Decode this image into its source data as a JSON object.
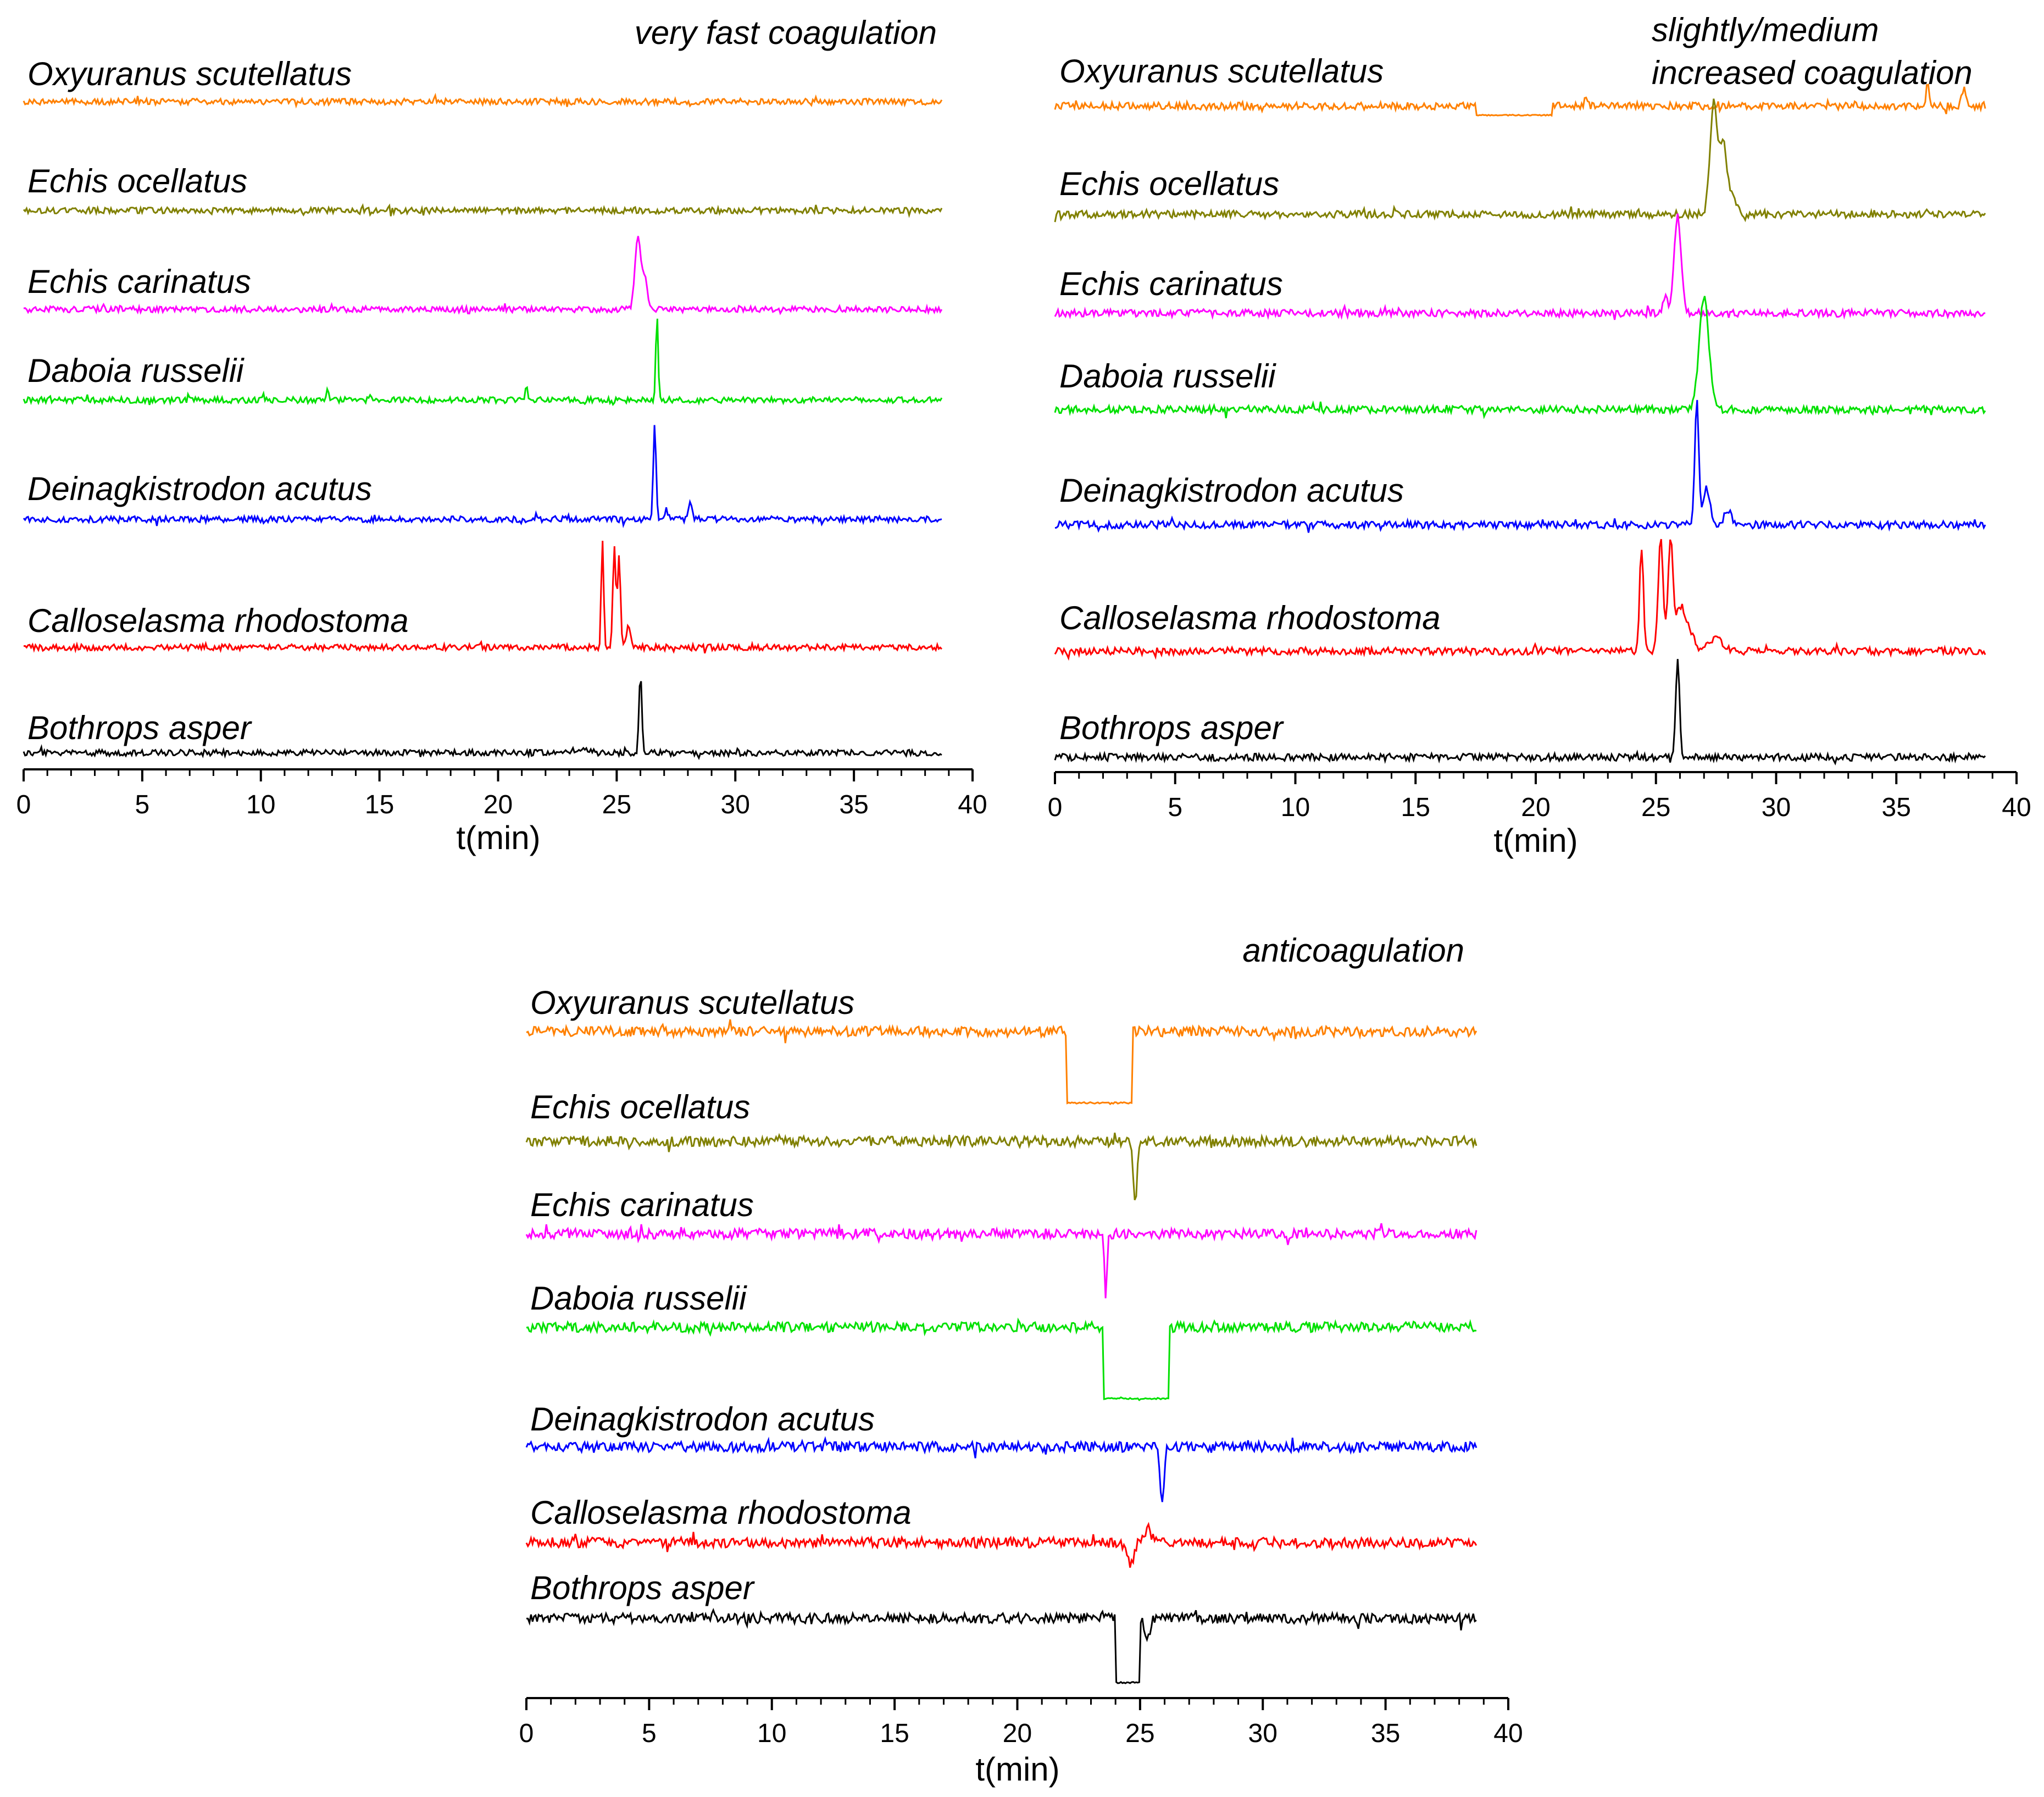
{
  "colors": {
    "oxyuranus": "#ff8000",
    "echis_ocellatus": "#808000",
    "echis_carinatus": "#ff00ff",
    "daboia": "#00e000",
    "deinagkistrodon": "#0000ff",
    "calloselasma": "#ff0000",
    "bothrops": "#000000"
  },
  "chart_data": [
    {
      "type": "line",
      "panel_id": "A",
      "title_lines": [
        "very fast coagulation"
      ],
      "xlabel": "t(min)",
      "xlim": [
        0,
        40
      ],
      "x_major_ticks": [
        0,
        5,
        10,
        15,
        20,
        25,
        30,
        35,
        40
      ],
      "x_tick_labels": [
        "0",
        "5",
        "10",
        "15",
        "20",
        "25",
        "30",
        "35",
        "40"
      ],
      "x_minor_step": 1,
      "data_end": 38.7,
      "noise_level": 0.05,
      "series": [
        {
          "name": "Oxyuranus scutellatus",
          "color_key": "oxyuranus",
          "peaks": [],
          "plateaus": []
        },
        {
          "name": "Echis ocellatus",
          "color_key": "echis_ocellatus",
          "peaks": [],
          "plateaus": []
        },
        {
          "name": "Echis carinatus",
          "color_key": "echis_carinatus",
          "peaks": [
            {
              "t": 25.9,
              "h": 1.25,
              "w": 0.12
            },
            {
              "t": 26.2,
              "h": 0.5,
              "w": 0.1
            }
          ],
          "plateaus": []
        },
        {
          "name": "Daboia russelii",
          "color_key": "daboia",
          "peaks": [
            {
              "t": 26.7,
              "h": 1.35,
              "w": 0.05
            },
            {
              "t": 21.2,
              "h": 0.25,
              "w": 0.05
            },
            {
              "t": 12.8,
              "h": 0.2,
              "w": 0.05
            }
          ],
          "plateaus": []
        },
        {
          "name": "Deinagkistrodon acutus",
          "color_key": "deinagkistrodon",
          "peaks": [
            {
              "t": 26.6,
              "h": 1.6,
              "w": 0.06
            },
            {
              "t": 28.1,
              "h": 0.25,
              "w": 0.08
            },
            {
              "t": 27.1,
              "h": 0.15,
              "w": 0.06
            }
          ],
          "plateaus": []
        },
        {
          "name": "Calloselasma rhodostoma",
          "color_key": "calloselasma",
          "peaks": [
            {
              "t": 24.4,
              "h": 1.8,
              "w": 0.05
            },
            {
              "t": 24.9,
              "h": 1.7,
              "w": 0.06
            },
            {
              "t": 25.1,
              "h": 1.5,
              "w": 0.06
            },
            {
              "t": 25.5,
              "h": 0.35,
              "w": 0.08
            }
          ],
          "plateaus": []
        },
        {
          "name": "Bothrops asper",
          "color_key": "bothrops",
          "peaks": [
            {
              "t": 26.0,
              "h": 1.35,
              "w": 0.06
            },
            {
              "t": 23.5,
              "h": 0.07,
              "w": 0.3
            }
          ],
          "plateaus": []
        }
      ]
    },
    {
      "type": "line",
      "panel_id": "B",
      "title_lines": [
        "slightly/medium",
        "increased coagulation"
      ],
      "xlabel": "t(min)",
      "xlim": [
        0,
        40
      ],
      "x_major_ticks": [
        0,
        5,
        10,
        15,
        20,
        25,
        30,
        35,
        40
      ],
      "x_tick_labels": [
        "0",
        "5",
        "10",
        "15",
        "20",
        "25",
        "30",
        "35",
        "40"
      ],
      "x_minor_step": 1,
      "data_end": 38.7,
      "noise_level": 0.06,
      "series": [
        {
          "name": "Oxyuranus scutellatus",
          "color_key": "oxyuranus",
          "peaks": [
            {
              "t": 36.3,
              "h": 0.35,
              "w": 0.06
            },
            {
              "t": 37.8,
              "h": 0.3,
              "w": 0.08
            },
            {
              "t": 22.1,
              "h": 0.2,
              "w": 0.05
            }
          ],
          "plateaus": [
            {
              "start": 17.5,
              "end": 20.7,
              "level": -0.15
            }
          ]
        },
        {
          "name": "Echis ocellatus",
          "color_key": "echis_ocellatus",
          "peaks": [
            {
              "t": 27.4,
              "h": 1.85,
              "w": 0.15
            },
            {
              "t": 27.8,
              "h": 1.2,
              "w": 0.15
            },
            {
              "t": 28.2,
              "h": 0.3,
              "w": 0.15
            }
          ],
          "plateaus": []
        },
        {
          "name": "Echis carinatus",
          "color_key": "echis_carinatus",
          "peaks": [
            {
              "t": 25.9,
              "h": 1.6,
              "w": 0.15
            },
            {
              "t": 25.4,
              "h": 0.3,
              "w": 0.08
            }
          ],
          "plateaus": []
        },
        {
          "name": "Daboia russelii",
          "color_key": "daboia",
          "peaks": [
            {
              "t": 27.0,
              "h": 1.85,
              "w": 0.2
            }
          ],
          "plateaus": []
        },
        {
          "name": "Deinagkistrodon acutus",
          "color_key": "deinagkistrodon",
          "peaks": [
            {
              "t": 26.7,
              "h": 2.05,
              "w": 0.08
            },
            {
              "t": 27.1,
              "h": 0.6,
              "w": 0.15
            },
            {
              "t": 28.0,
              "h": 0.25,
              "w": 0.15
            }
          ],
          "plateaus": []
        },
        {
          "name": "Calloselasma rhodostoma",
          "color_key": "calloselasma",
          "peaks": [
            {
              "t": 24.4,
              "h": 1.7,
              "w": 0.08
            },
            {
              "t": 25.2,
              "h": 1.9,
              "w": 0.1
            },
            {
              "t": 25.6,
              "h": 1.8,
              "w": 0.1
            },
            {
              "t": 26.0,
              "h": 0.7,
              "w": 0.2
            },
            {
              "t": 26.4,
              "h": 0.3,
              "w": 0.2
            },
            {
              "t": 27.5,
              "h": 0.2,
              "w": 0.3
            }
          ],
          "plateaus": []
        },
        {
          "name": "Bothrops asper",
          "color_key": "bothrops",
          "peaks": [
            {
              "t": 25.9,
              "h": 1.65,
              "w": 0.08
            }
          ],
          "plateaus": []
        }
      ]
    },
    {
      "type": "line",
      "panel_id": "C",
      "title_lines": [
        "anticoagulation"
      ],
      "xlabel": "t(min)",
      "xlim": [
        0,
        40
      ],
      "x_major_ticks": [
        0,
        5,
        10,
        15,
        20,
        25,
        30,
        35,
        40
      ],
      "x_tick_labels": [
        "0",
        "5",
        "10",
        "15",
        "20",
        "25",
        "30",
        "35",
        "40"
      ],
      "x_minor_step": 1,
      "data_end": 38.7,
      "noise_level": 0.07,
      "series": [
        {
          "name": "Oxyuranus scutellatus",
          "color_key": "oxyuranus",
          "peaks": [],
          "plateaus": [
            {
              "start": 22.0,
              "end": 24.7,
              "level": -1.0
            }
          ]
        },
        {
          "name": "Echis ocellatus",
          "color_key": "echis_ocellatus",
          "peaks": [
            {
              "t": 24.8,
              "h": -0.9,
              "w": 0.08
            }
          ],
          "plateaus": []
        },
        {
          "name": "Echis carinatus",
          "color_key": "echis_carinatus",
          "peaks": [
            {
              "t": 23.6,
              "h": -0.9,
              "w": 0.05
            }
          ],
          "plateaus": []
        },
        {
          "name": "Daboia russelii",
          "color_key": "daboia",
          "peaks": [],
          "plateaus": [
            {
              "start": 23.5,
              "end": 26.2,
              "level": -1.0
            }
          ]
        },
        {
          "name": "Deinagkistrodon acutus",
          "color_key": "deinagkistrodon",
          "peaks": [
            {
              "t": 25.9,
              "h": -0.75,
              "w": 0.08
            }
          ],
          "plateaus": []
        },
        {
          "name": "Calloselasma rhodostoma",
          "color_key": "calloselasma",
          "peaks": [
            {
              "t": 24.6,
              "h": -0.3,
              "w": 0.15
            },
            {
              "t": 25.3,
              "h": 0.15,
              "w": 0.2
            }
          ],
          "plateaus": []
        },
        {
          "name": "Bothrops asper",
          "color_key": "bothrops",
          "peaks": [
            {
              "t": 25.3,
              "h": -0.3,
              "w": 0.1
            }
          ],
          "plateaus": [
            {
              "start": 24.0,
              "end": 25.0,
              "level": -0.9
            }
          ]
        }
      ]
    }
  ]
}
